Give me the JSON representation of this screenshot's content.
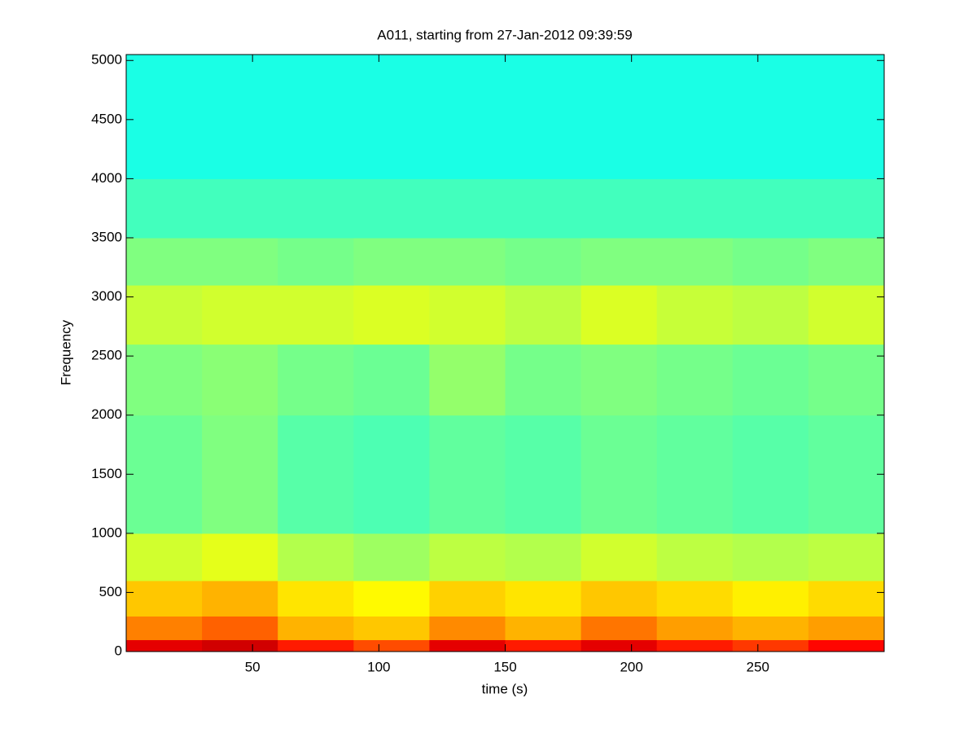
{
  "chart_data": {
    "type": "spectrogram",
    "title": "A011, starting from 27-Jan-2012 09:39:59",
    "x_label": "time (s)",
    "y_label": "Frequency",
    "colormap": "jet",
    "xlim": [
      0,
      300
    ],
    "ylim": [
      0,
      5050
    ],
    "xticks": [
      50,
      100,
      150,
      200,
      250
    ],
    "yticks": [
      0,
      500,
      1000,
      1500,
      2000,
      2500,
      3000,
      3500,
      4000,
      4500,
      5000
    ],
    "x_bins": [
      0,
      30,
      60,
      90,
      120,
      150,
      180,
      210,
      240,
      270,
      300
    ],
    "y_bins": [
      0,
      100,
      300,
      600,
      1000,
      2000,
      2600,
      3100,
      3500,
      4000,
      5050
    ],
    "z": [
      [
        0.9,
        0.92,
        0.85,
        0.8,
        0.9,
        0.85,
        0.9,
        0.85,
        0.82,
        0.87
      ],
      [
        0.75,
        0.78,
        0.7,
        0.68,
        0.74,
        0.7,
        0.76,
        0.72,
        0.7,
        0.72
      ],
      [
        0.68,
        0.7,
        0.65,
        0.63,
        0.67,
        0.65,
        0.68,
        0.66,
        0.64,
        0.66
      ],
      [
        0.58,
        0.6,
        0.55,
        0.53,
        0.56,
        0.55,
        0.58,
        0.56,
        0.55,
        0.56
      ],
      [
        0.48,
        0.5,
        0.46,
        0.45,
        0.47,
        0.46,
        0.48,
        0.47,
        0.46,
        0.47
      ],
      [
        0.5,
        0.51,
        0.49,
        0.48,
        0.52,
        0.49,
        0.5,
        0.49,
        0.48,
        0.49
      ],
      [
        0.57,
        0.58,
        0.58,
        0.59,
        0.58,
        0.56,
        0.59,
        0.57,
        0.56,
        0.58
      ],
      [
        0.5,
        0.5,
        0.49,
        0.5,
        0.5,
        0.49,
        0.5,
        0.5,
        0.49,
        0.5
      ],
      [
        0.44,
        0.44,
        0.44,
        0.44,
        0.44,
        0.44,
        0.44,
        0.44,
        0.44,
        0.44
      ],
      [
        0.4,
        0.4,
        0.4,
        0.4,
        0.4,
        0.4,
        0.4,
        0.4,
        0.4,
        0.4
      ]
    ]
  }
}
